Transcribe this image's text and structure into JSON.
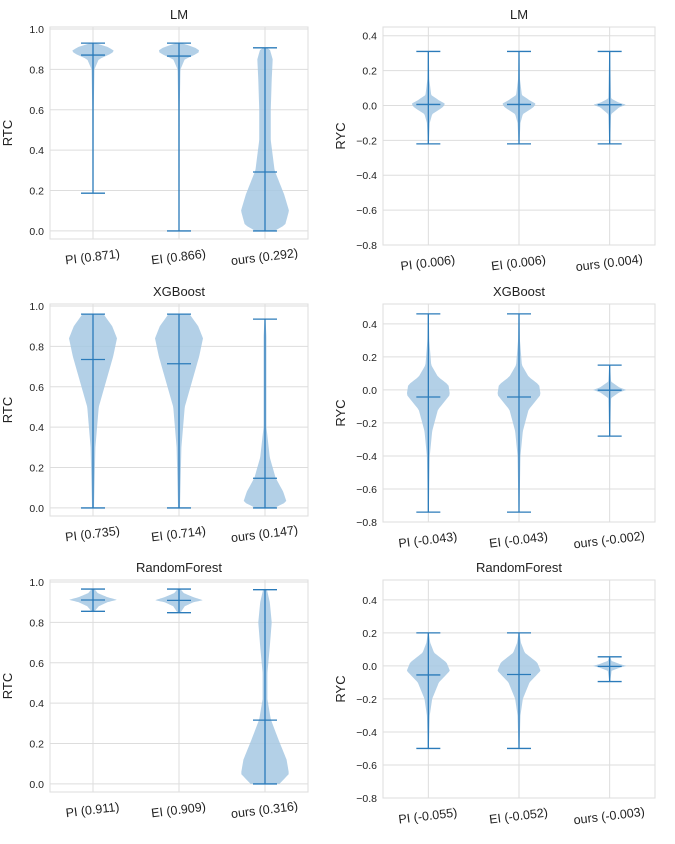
{
  "figure": {
    "accent_color": "#2b7bba",
    "violin_fill": "#a6c8e3",
    "grid_color": "#dddddd"
  },
  "chart_data": [
    {
      "type": "violin",
      "title": "LM",
      "ylabel": "RTC",
      "ylim": [
        -0.04,
        1.01
      ],
      "yticks": [
        0.0,
        0.2,
        0.4,
        0.6,
        0.8,
        1.0
      ],
      "ytick_labels": [
        "0.0",
        "0.2",
        "0.4",
        "0.6",
        "0.8",
        "1.0"
      ],
      "grid": true,
      "categories": [
        "PI (0.871)",
        "EI (0.866)",
        "ours (0.292)"
      ],
      "violins": [
        {
          "min": 0.187,
          "median": 0.871,
          "max": 0.93,
          "density": [
            [
              0.187,
              0.01
            ],
            [
              0.6,
              0.015
            ],
            [
              0.8,
              0.03
            ],
            [
              0.85,
              0.12
            ],
            [
              0.875,
              0.35
            ],
            [
              0.89,
              0.45
            ],
            [
              0.91,
              0.32
            ],
            [
              0.93,
              0.05
            ]
          ]
        },
        {
          "min": 0.0,
          "median": 0.866,
          "max": 0.93,
          "density": [
            [
              0.0,
              0.01
            ],
            [
              0.6,
              0.015
            ],
            [
              0.8,
              0.03
            ],
            [
              0.85,
              0.12
            ],
            [
              0.875,
              0.35
            ],
            [
              0.89,
              0.45
            ],
            [
              0.91,
              0.32
            ],
            [
              0.93,
              0.05
            ]
          ]
        },
        {
          "min": 0.0,
          "median": 0.292,
          "max": 0.907,
          "density": [
            [
              0.0,
              0.2
            ],
            [
              0.03,
              0.42
            ],
            [
              0.1,
              0.5
            ],
            [
              0.18,
              0.4
            ],
            [
              0.3,
              0.2
            ],
            [
              0.45,
              0.12
            ],
            [
              0.6,
              0.12
            ],
            [
              0.75,
              0.14
            ],
            [
              0.85,
              0.16
            ],
            [
              0.9,
              0.1
            ],
            [
              0.907,
              0.04
            ]
          ]
        }
      ]
    },
    {
      "type": "violin",
      "title": "LM",
      "ylabel": "RYC",
      "ylim": [
        -0.8,
        0.45
      ],
      "yticks": [
        -0.8,
        -0.6,
        -0.4,
        -0.2,
        0.0,
        0.2,
        0.4
      ],
      "ytick_labels": [
        "−0.8",
        "−0.6",
        "−0.4",
        "−0.2",
        "0.0",
        "0.2",
        "0.4"
      ],
      "grid": true,
      "categories": [
        "PI (0.006)",
        "EI (0.006)",
        "ours (0.004)"
      ],
      "violins": [
        {
          "min": -0.22,
          "median": 0.006,
          "max": 0.31,
          "density": [
            [
              -0.22,
              0.01
            ],
            [
              -0.1,
              0.03
            ],
            [
              -0.05,
              0.08
            ],
            [
              -0.01,
              0.3
            ],
            [
              0.01,
              0.35
            ],
            [
              0.03,
              0.22
            ],
            [
              0.06,
              0.06
            ],
            [
              0.15,
              0.02
            ],
            [
              0.31,
              0.01
            ]
          ]
        },
        {
          "min": -0.22,
          "median": 0.006,
          "max": 0.31,
          "density": [
            [
              -0.22,
              0.01
            ],
            [
              -0.1,
              0.03
            ],
            [
              -0.05,
              0.08
            ],
            [
              -0.01,
              0.3
            ],
            [
              0.01,
              0.35
            ],
            [
              0.03,
              0.22
            ],
            [
              0.06,
              0.06
            ],
            [
              0.15,
              0.02
            ],
            [
              0.31,
              0.01
            ]
          ]
        },
        {
          "min": -0.22,
          "median": 0.004,
          "max": 0.31,
          "density": [
            [
              -0.22,
              0.01
            ],
            [
              -0.05,
              0.03
            ],
            [
              -0.01,
              0.2
            ],
            [
              0.004,
              0.35
            ],
            [
              0.015,
              0.2
            ],
            [
              0.04,
              0.03
            ],
            [
              0.31,
              0.01
            ]
          ]
        }
      ]
    },
    {
      "type": "violin",
      "title": "XGBoost",
      "ylabel": "RTC",
      "ylim": [
        -0.04,
        1.01
      ],
      "yticks": [
        0.0,
        0.2,
        0.4,
        0.6,
        0.8,
        1.0
      ],
      "ytick_labels": [
        "0.0",
        "0.2",
        "0.4",
        "0.6",
        "0.8",
        "1.0"
      ],
      "grid": true,
      "categories": [
        "PI (0.735)",
        "EI (0.714)",
        "ours (0.147)"
      ],
      "violins": [
        {
          "min": 0.0,
          "median": 0.735,
          "max": 0.96,
          "density": [
            [
              0.0,
              0.02
            ],
            [
              0.3,
              0.05
            ],
            [
              0.5,
              0.12
            ],
            [
              0.65,
              0.3
            ],
            [
              0.75,
              0.42
            ],
            [
              0.84,
              0.5
            ],
            [
              0.9,
              0.4
            ],
            [
              0.96,
              0.22
            ]
          ]
        },
        {
          "min": 0.0,
          "median": 0.714,
          "max": 0.96,
          "density": [
            [
              0.0,
              0.02
            ],
            [
              0.3,
              0.05
            ],
            [
              0.5,
              0.12
            ],
            [
              0.65,
              0.3
            ],
            [
              0.75,
              0.42
            ],
            [
              0.84,
              0.5
            ],
            [
              0.9,
              0.4
            ],
            [
              0.96,
              0.22
            ]
          ]
        },
        {
          "min": 0.0,
          "median": 0.147,
          "max": 0.935,
          "density": [
            [
              0.0,
              0.2
            ],
            [
              0.03,
              0.45
            ],
            [
              0.08,
              0.38
            ],
            [
              0.15,
              0.22
            ],
            [
              0.25,
              0.1
            ],
            [
              0.4,
              0.03
            ],
            [
              0.85,
              0.03
            ],
            [
              0.935,
              0.01
            ]
          ]
        }
      ]
    },
    {
      "type": "violin",
      "title": "XGBoost",
      "ylabel": "RYC",
      "ylim": [
        -0.8,
        0.52
      ],
      "yticks": [
        -0.8,
        -0.6,
        -0.4,
        -0.2,
        0.0,
        0.2,
        0.4
      ],
      "ytick_labels": [
        "−0.8",
        "−0.6",
        "−0.4",
        "−0.2",
        "0.0",
        "0.2",
        "0.4"
      ],
      "grid": true,
      "categories": [
        "PI (-0.043)",
        "EI (-0.043)",
        "ours (-0.002)"
      ],
      "violins": [
        {
          "min": -0.74,
          "median": -0.043,
          "max": 0.46,
          "density": [
            [
              -0.74,
              0.01
            ],
            [
              -0.4,
              0.03
            ],
            [
              -0.25,
              0.08
            ],
            [
              -0.12,
              0.2
            ],
            [
              -0.03,
              0.45
            ],
            [
              0.03,
              0.42
            ],
            [
              0.08,
              0.2
            ],
            [
              0.15,
              0.06
            ],
            [
              0.3,
              0.02
            ],
            [
              0.46,
              0.01
            ]
          ]
        },
        {
          "min": -0.74,
          "median": -0.043,
          "max": 0.46,
          "density": [
            [
              -0.74,
              0.01
            ],
            [
              -0.4,
              0.03
            ],
            [
              -0.25,
              0.08
            ],
            [
              -0.12,
              0.2
            ],
            [
              -0.03,
              0.45
            ],
            [
              0.03,
              0.42
            ],
            [
              0.08,
              0.2
            ],
            [
              0.15,
              0.06
            ],
            [
              0.3,
              0.02
            ],
            [
              0.46,
              0.01
            ]
          ]
        },
        {
          "min": -0.28,
          "median": -0.002,
          "max": 0.15,
          "density": [
            [
              -0.28,
              0.01
            ],
            [
              -0.05,
              0.03
            ],
            [
              -0.015,
              0.2
            ],
            [
              0.0,
              0.35
            ],
            [
              0.015,
              0.2
            ],
            [
              0.05,
              0.03
            ],
            [
              0.15,
              0.01
            ]
          ]
        }
      ]
    },
    {
      "type": "violin",
      "title": "RandomForest",
      "ylabel": "RTC",
      "ylim": [
        -0.04,
        1.01
      ],
      "yticks": [
        0.0,
        0.2,
        0.4,
        0.6,
        0.8,
        1.0
      ],
      "ytick_labels": [
        "0.0",
        "0.2",
        "0.4",
        "0.6",
        "0.8",
        "1.0"
      ],
      "grid": true,
      "categories": [
        "PI (0.911)",
        "EI (0.909)",
        "ours (0.316)"
      ],
      "violins": [
        {
          "min": 0.855,
          "median": 0.911,
          "max": 0.965,
          "density": [
            [
              0.855,
              0.03
            ],
            [
              0.88,
              0.12
            ],
            [
              0.9,
              0.3
            ],
            [
              0.912,
              0.5
            ],
            [
              0.925,
              0.3
            ],
            [
              0.945,
              0.1
            ],
            [
              0.965,
              0.03
            ]
          ]
        },
        {
          "min": 0.848,
          "median": 0.909,
          "max": 0.965,
          "density": [
            [
              0.848,
              0.03
            ],
            [
              0.88,
              0.12
            ],
            [
              0.9,
              0.3
            ],
            [
              0.91,
              0.5
            ],
            [
              0.925,
              0.3
            ],
            [
              0.945,
              0.1
            ],
            [
              0.965,
              0.03
            ]
          ]
        },
        {
          "min": 0.0,
          "median": 0.316,
          "max": 0.962,
          "density": [
            [
              0.0,
              0.3
            ],
            [
              0.05,
              0.5
            ],
            [
              0.12,
              0.45
            ],
            [
              0.22,
              0.28
            ],
            [
              0.32,
              0.12
            ],
            [
              0.42,
              0.05
            ],
            [
              0.55,
              0.05
            ],
            [
              0.68,
              0.1
            ],
            [
              0.8,
              0.14
            ],
            [
              0.9,
              0.1
            ],
            [
              0.962,
              0.04
            ]
          ]
        }
      ]
    },
    {
      "type": "violin",
      "title": "RandomForest",
      "ylabel": "RYC",
      "ylim": [
        -0.8,
        0.52
      ],
      "yticks": [
        -0.8,
        -0.6,
        -0.4,
        -0.2,
        0.0,
        0.2,
        0.4
      ],
      "ytick_labels": [
        "−0.8",
        "−0.6",
        "−0.4",
        "−0.2",
        "0.0",
        "0.2",
        "0.4"
      ],
      "grid": true,
      "categories": [
        "PI (-0.055)",
        "EI (-0.052)",
        "ours (-0.003)"
      ],
      "violins": [
        {
          "min": -0.5,
          "median": -0.055,
          "max": 0.2,
          "density": [
            [
              -0.5,
              0.01
            ],
            [
              -0.3,
              0.03
            ],
            [
              -0.2,
              0.08
            ],
            [
              -0.1,
              0.22
            ],
            [
              -0.03,
              0.45
            ],
            [
              0.02,
              0.38
            ],
            [
              0.08,
              0.12
            ],
            [
              0.14,
              0.04
            ],
            [
              0.2,
              0.01
            ]
          ]
        },
        {
          "min": -0.5,
          "median": -0.052,
          "max": 0.2,
          "density": [
            [
              -0.5,
              0.01
            ],
            [
              -0.3,
              0.03
            ],
            [
              -0.2,
              0.08
            ],
            [
              -0.1,
              0.22
            ],
            [
              -0.03,
              0.45
            ],
            [
              0.02,
              0.38
            ],
            [
              0.08,
              0.12
            ],
            [
              0.14,
              0.04
            ],
            [
              0.2,
              0.01
            ]
          ]
        },
        {
          "min": -0.095,
          "median": -0.003,
          "max": 0.055,
          "density": [
            [
              -0.095,
              0.01
            ],
            [
              -0.03,
              0.04
            ],
            [
              -0.01,
              0.22
            ],
            [
              0.0,
              0.35
            ],
            [
              0.01,
              0.22
            ],
            [
              0.03,
              0.04
            ],
            [
              0.055,
              0.01
            ]
          ]
        }
      ]
    }
  ]
}
